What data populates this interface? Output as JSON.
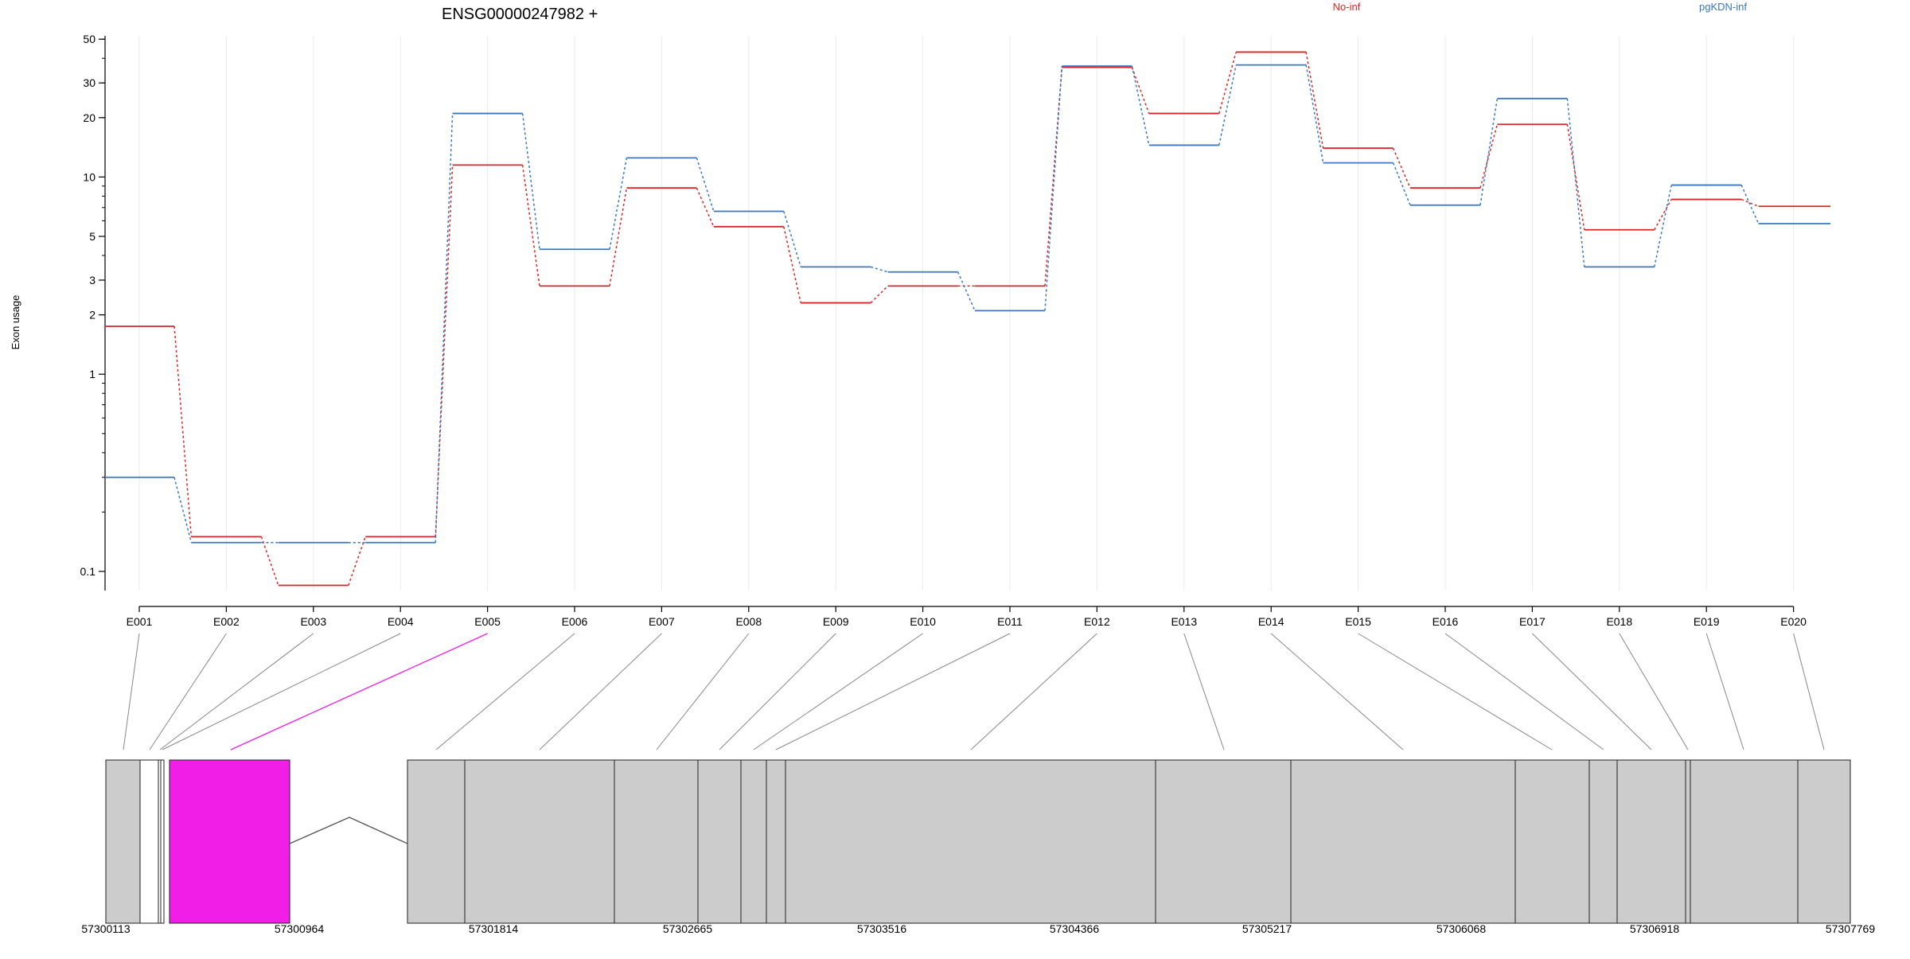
{
  "chart_data": {
    "type": "line",
    "title": "ENSG00000247982 +",
    "ylabel": "Exon usage",
    "y_scale": "log",
    "ylim": [
      0.08,
      52
    ],
    "grid": true,
    "legend_placement": "top",
    "categories": [
      "E001",
      "E002",
      "E003",
      "E004",
      "E005",
      "E006",
      "E007",
      "E008",
      "E009",
      "E010",
      "E011",
      "E012",
      "E013",
      "E014",
      "E015",
      "E016",
      "E017",
      "E018",
      "E019",
      "E020"
    ],
    "y_ticks": [
      0.1,
      1,
      2,
      3,
      5,
      10,
      20,
      30,
      50
    ],
    "y_tick_labels": [
      "0.1",
      "1",
      "2",
      "3",
      "5",
      "10",
      "20",
      "30",
      "50"
    ],
    "series": [
      {
        "name": "No-inf",
        "color": "#d62728",
        "values": [
          1.75,
          0.15,
          0.085,
          0.15,
          11.5,
          2.8,
          8.8,
          5.6,
          2.3,
          2.8,
          2.8,
          36,
          21,
          43,
          14,
          8.8,
          18.5,
          5.4,
          7.7,
          7.1
        ]
      },
      {
        "name": "pgKDN-inf",
        "color": "#3a78c2",
        "values": [
          0.3,
          0.14,
          0.14,
          0.14,
          21,
          4.3,
          12.5,
          6.7,
          3.5,
          3.3,
          2.1,
          36.5,
          14.5,
          37,
          11.8,
          7.2,
          25,
          3.5,
          9.1,
          5.8
        ]
      }
    ],
    "genomic_axis": {
      "labels": [
        "57300113",
        "57300964",
        "57301814",
        "57302665",
        "57303516",
        "57304366",
        "57305217",
        "57306068",
        "57306918",
        "57307769"
      ],
      "start": 57300113,
      "end": 57307769
    },
    "gene_model": {
      "highlight_exon": "E005",
      "highlight_color": "#f01ee6",
      "exon_color": "#cccccc"
    }
  }
}
